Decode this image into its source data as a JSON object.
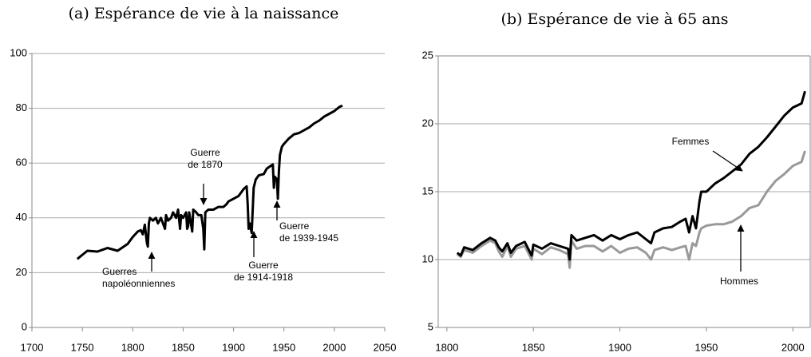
{
  "chart_data": [
    {
      "type": "line",
      "title": "(a) Espérance de vie à la naissance",
      "x": [
        1745,
        1750,
        1755,
        1765,
        1775,
        1785,
        1795,
        1800,
        1805,
        1808,
        1810,
        1812,
        1814,
        1815,
        1816,
        1817,
        1820,
        1823,
        1825,
        1828,
        1832,
        1833,
        1835,
        1838,
        1840,
        1843,
        1845,
        1847,
        1848,
        1850,
        1853,
        1854,
        1855,
        1856,
        1859,
        1860,
        1863,
        1865,
        1868,
        1870,
        1871,
        1872,
        1875,
        1880,
        1885,
        1890,
        1893,
        1895,
        1900,
        1905,
        1910,
        1913,
        1914,
        1915,
        1916,
        1918,
        1919,
        1920,
        1922,
        1925,
        1930,
        1933,
        1937,
        1939,
        1940,
        1941,
        1943,
        1944,
        1945,
        1946,
        1948,
        1950,
        1955,
        1960,
        1965,
        1970,
        1975,
        1980,
        1985,
        1990,
        1995,
        2000,
        2005,
        2008
      ],
      "series": [
        {
          "color": "#000000",
          "values": [
            25,
            26.5,
            28,
            27.7,
            29,
            28,
            30.5,
            33,
            35,
            35.5,
            34,
            37.5,
            31,
            29.5,
            38,
            40,
            39,
            40,
            38,
            40,
            36,
            41,
            39,
            40,
            42,
            40,
            43,
            36,
            41,
            40,
            42,
            36,
            37,
            42,
            35,
            43,
            42,
            41,
            41,
            36,
            28.5,
            42,
            43,
            43,
            44,
            44,
            45,
            46,
            47,
            48,
            50.5,
            51.5,
            45,
            36,
            38,
            34.5,
            43,
            51,
            54,
            55.5,
            56,
            58,
            59,
            59.5,
            51,
            55,
            54,
            47,
            57,
            63,
            66,
            67,
            69,
            70.5,
            71,
            72,
            73,
            74.5,
            75.5,
            77,
            78,
            79,
            80.5,
            81
          ]
        }
      ],
      "xlim": [
        1700,
        2050
      ],
      "xticks": [
        1700,
        1750,
        1800,
        1850,
        1900,
        1950,
        2000,
        2050
      ],
      "ylim": [
        0,
        100
      ],
      "yticks": [
        0,
        20,
        40,
        60,
        80,
        100
      ],
      "grid": true,
      "annotations": [
        {
          "lines": [
            "Guerres",
            "napoléonniennes"
          ]
        },
        {
          "lines": [
            "Guerre",
            "de 1870"
          ]
        },
        {
          "lines": [
            "Guerre",
            "de 1914-1918"
          ]
        },
        {
          "lines": [
            "Guerre",
            "de 1939-1945"
          ]
        }
      ]
    },
    {
      "type": "line",
      "title": "(b) Espérance de vie à 65 ans",
      "x": [
        1806,
        1808,
        1810,
        1815,
        1820,
        1825,
        1828,
        1830,
        1832,
        1835,
        1837,
        1840,
        1845,
        1849,
        1850,
        1855,
        1860,
        1865,
        1870,
        1871,
        1872,
        1875,
        1880,
        1885,
        1890,
        1895,
        1900,
        1905,
        1910,
        1915,
        1918,
        1920,
        1925,
        1930,
        1935,
        1938,
        1940,
        1942,
        1944,
        1946,
        1947,
        1950,
        1955,
        1960,
        1965,
        1970,
        1975,
        1980,
        1985,
        1990,
        1995,
        2000,
        2005,
        2007
      ],
      "series": [
        {
          "name": "Femmes",
          "color": "#000000",
          "values": [
            10.5,
            10.3,
            10.9,
            10.7,
            11.2,
            11.6,
            11.4,
            10.9,
            10.6,
            11.2,
            10.5,
            11.0,
            11.3,
            10.3,
            11.1,
            10.8,
            11.2,
            11.0,
            10.8,
            10.0,
            11.8,
            11.4,
            11.6,
            11.8,
            11.4,
            11.8,
            11.5,
            11.8,
            12.0,
            11.5,
            11.2,
            12.0,
            12.3,
            12.4,
            12.8,
            13.0,
            12.0,
            13.2,
            12.3,
            14.3,
            15.0,
            15.0,
            15.6,
            16.0,
            16.5,
            17.0,
            17.8,
            18.3,
            19.0,
            19.8,
            20.6,
            21.2,
            21.5,
            22.4
          ]
        },
        {
          "name": "Hommes",
          "color": "#999999",
          "values": [
            10.4,
            10.2,
            10.7,
            10.5,
            11.0,
            11.4,
            11.2,
            10.6,
            10.2,
            11.0,
            10.2,
            10.8,
            11.0,
            10.0,
            10.8,
            10.4,
            10.9,
            10.7,
            10.4,
            9.4,
            11.4,
            10.8,
            11.0,
            11.0,
            10.6,
            11.0,
            10.5,
            10.8,
            10.9,
            10.5,
            10.0,
            10.7,
            10.9,
            10.7,
            10.9,
            11.0,
            10.0,
            11.2,
            11.0,
            12.0,
            12.3,
            12.5,
            12.6,
            12.6,
            12.8,
            13.2,
            13.8,
            14.0,
            15.0,
            15.8,
            16.3,
            16.9,
            17.2,
            18.0
          ]
        }
      ],
      "xlim": [
        1795,
        2010
      ],
      "xticks": [
        1800,
        1850,
        1900,
        1950,
        2000
      ],
      "ylim": [
        5,
        25
      ],
      "yticks": [
        5,
        10,
        15,
        20,
        25
      ],
      "grid": true
    }
  ]
}
